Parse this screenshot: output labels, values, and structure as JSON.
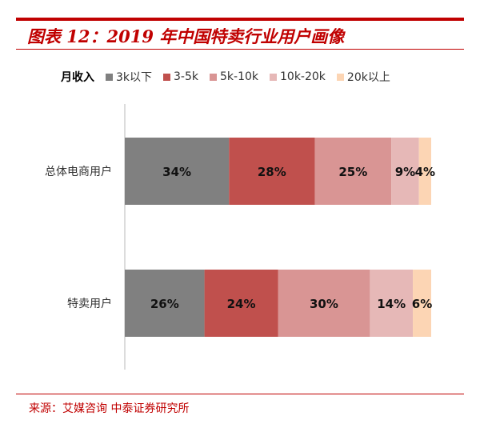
{
  "title": "图表 12：2019 年中国特卖行业用户画像",
  "source": "来源：艾媒咨询 中泰证券研究所",
  "chart_data": {
    "type": "bar",
    "orientation": "horizontal",
    "stacked": "percent",
    "legend_title": "月收入",
    "legend_position": "top",
    "categories": [
      "总体电商用户",
      "特卖用户"
    ],
    "series": [
      {
        "name": "3k以下",
        "color": "#808080",
        "values": [
          34,
          26
        ],
        "labels": [
          "34%",
          "26%"
        ]
      },
      {
        "name": "3-5k",
        "color": "#c0504d",
        "values": [
          28,
          24
        ],
        "labels": [
          "28%",
          "24%"
        ]
      },
      {
        "name": "5k-10k",
        "color": "#d99594",
        "values": [
          25,
          30
        ],
        "labels": [
          "25%",
          "30%"
        ]
      },
      {
        "name": "10k-20k",
        "color": "#e6b8b7",
        "values": [
          9,
          14
        ],
        "labels": [
          "9%",
          "14%"
        ]
      },
      {
        "name": "20k以上",
        "color": "#fcd5b4",
        "values": [
          4,
          6
        ],
        "labels": [
          "4%",
          "6%"
        ]
      }
    ],
    "grid": false
  }
}
